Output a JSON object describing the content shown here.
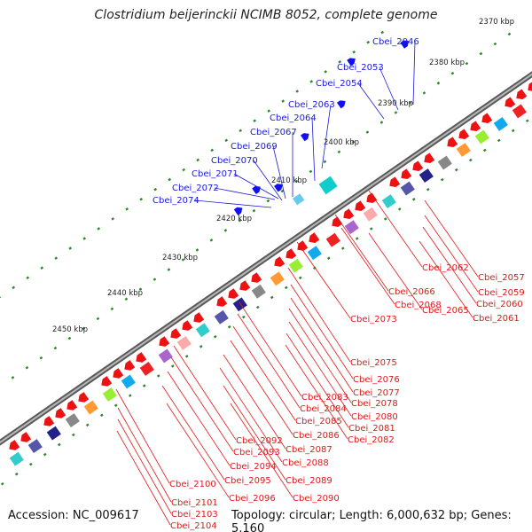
{
  "title": "Clostridium beijerinckii NCIMB 8052, complete genome",
  "footer": {
    "accession": "Accession: NC_009617",
    "summary": "Topology: circular; Length: 6,000,632 bp; Genes: 5,160"
  },
  "colors": {
    "forward_label": "#1a1add",
    "reverse_label": "#dd1a1a",
    "backbone": "#8a8a8a",
    "tick_dots": "#2a8a2a"
  },
  "kbp_ticks": [
    "2370 kbp",
    "2380 kbp",
    "2390 kbp",
    "2400 kbp",
    "2410 kbp",
    "2420 kbp",
    "2430 kbp",
    "2440 kbp",
    "2450 kbp"
  ],
  "forward_genes": [
    "Cbei_2046",
    "Cbei_2053",
    "Cbei_2054",
    "Cbei_2063",
    "Cbei_2064",
    "Cbei_2067",
    "Cbei_2069",
    "Cbei_2070",
    "Cbei_2071",
    "Cbei_2072",
    "Cbei_2074"
  ],
  "reverse_genes_right": [
    "Cbei_2057",
    "Cbei_2059",
    "Cbei_2060",
    "Cbei_2061",
    "Cbei_2062",
    "Cbei_2065",
    "Cbei_2066",
    "Cbei_2068",
    "Cbei_2073"
  ],
  "reverse_genes_center": [
    "Cbei_2075",
    "Cbei_2076",
    "Cbei_2077",
    "Cbei_2078",
    "Cbei_2080",
    "Cbei_2081",
    "Cbei_2082",
    "Cbei_2083",
    "Cbei_2084",
    "Cbei_2085",
    "Cbei_2086",
    "Cbei_2087",
    "Cbei_2088",
    "Cbei_2089",
    "Cbei_2090",
    "Cbei_2092",
    "Cbei_2093",
    "Cbei_2094",
    "Cbei_2095",
    "Cbei_2096"
  ],
  "reverse_genes_left": [
    "Cbei_2100",
    "Cbei_2101",
    "Cbei_2103",
    "Cbei_2104"
  ]
}
